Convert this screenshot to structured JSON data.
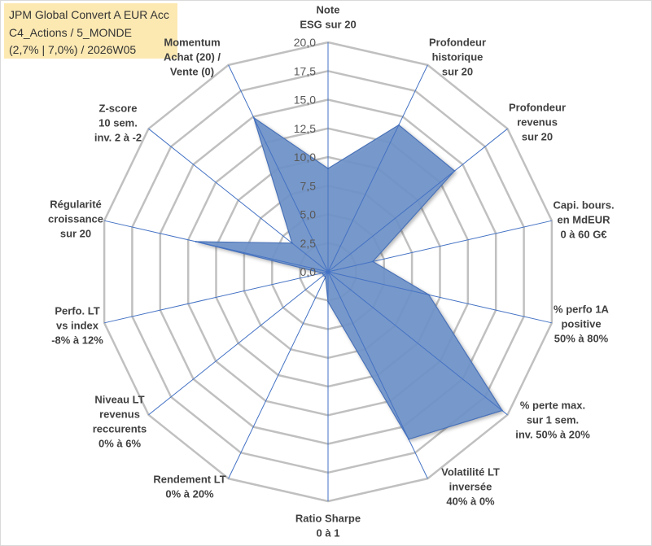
{
  "chart_data": {
    "type": "radar",
    "title_lines": [
      "JPM Global Convert A EUR Acc",
      "C4_Actions / 5_MONDE",
      "(2,7% | 7,0%) / 2026W05"
    ],
    "categories": [
      [
        "Note",
        "ESG sur 20"
      ],
      [
        "Profondeur",
        "historique",
        "sur 20"
      ],
      [
        "Profondeur",
        "revenus",
        "sur 20"
      ],
      [
        "Capi. bours.",
        "en MdEUR",
        "0 à 60 G€"
      ],
      [
        "% perfo 1A",
        "positive",
        "50% à 80%"
      ],
      [
        "% perte max.",
        "sur 1 sem.",
        "inv. 50% à 20%"
      ],
      [
        "Volatilité LT",
        "inversée",
        "40% à 0%"
      ],
      [
        "Ratio Sharpe",
        "0 à 1"
      ],
      [
        "Rendement LT",
        "0% à 20%"
      ],
      [
        "Niveau LT",
        "revenus",
        "reccurents",
        "0% à 6%"
      ],
      [
        "Perfo. LT",
        "vs index",
        "-8% à 12%"
      ],
      [
        "Régularité",
        "croissance",
        "sur 20"
      ],
      [
        "Z-score",
        "10 sem.",
        "inv. 2 à -2"
      ],
      [
        "Momentum",
        "Achat (20) /",
        "Vente (0)"
      ]
    ],
    "values": [
      9.0,
      14.2,
      14.1,
      4.0,
      9.0,
      19.4,
      16.2,
      2.6,
      0.5,
      0.5,
      0.5,
      11.8,
      4.0,
      14.9
    ],
    "rlim": [
      0,
      20
    ],
    "tick_values": [
      0,
      2.5,
      5,
      7.5,
      10,
      12.5,
      15,
      17.5,
      20
    ],
    "tick_labels": [
      "0,0",
      "2,5",
      "5,0",
      "7,5",
      "10,0",
      "12,5",
      "15,0",
      "17,5",
      "20,0"
    ],
    "grid": true
  },
  "colors": {
    "title_background": "#fce9b2",
    "series_fill": "#7094c9",
    "series_stroke": "#4a72b8",
    "spoke": "#4472c4",
    "grid": "#c0c0c0",
    "label_text": "#404040",
    "tick_text": "#595959",
    "border": "#d9d9d9"
  }
}
